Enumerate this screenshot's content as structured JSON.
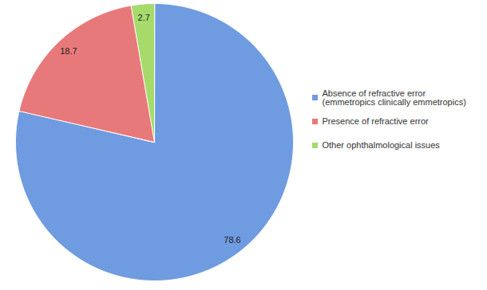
{
  "chart_data": {
    "type": "pie",
    "categories": [
      "Absence of refractive error (emmetropics clinically emmetropics)",
      "Presence of refractive error",
      "Other ophthalmological issues"
    ],
    "values": [
      78.6,
      18.7,
      2.7
    ],
    "colors": [
      "#6f9be0",
      "#e8797a",
      "#a6db6c"
    ],
    "data_labels": true,
    "legend": "right"
  }
}
